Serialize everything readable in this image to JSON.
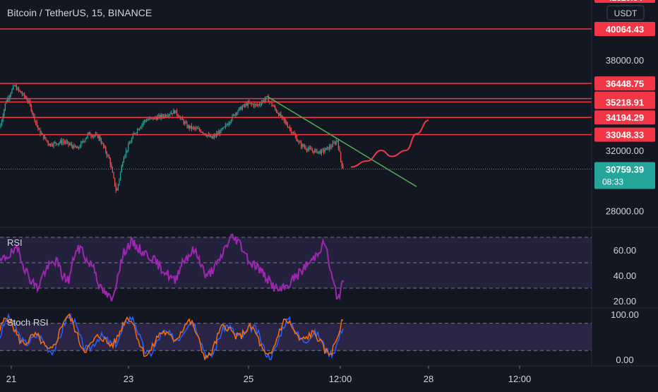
{
  "header": {
    "title": "Bitcoin / TetherUS, 15, BINANCE"
  },
  "price_axis": {
    "currency": "USDT",
    "tick_labels": [
      "38000.00",
      "32000.00",
      "28000.00"
    ],
    "top_partial_label": "42820.54"
  },
  "horizontal_levels": [
    {
      "label": "40064.43",
      "value": 40064.43
    },
    {
      "label": "36448.75",
      "value": 36448.75
    },
    {
      "label": "35439.51",
      "value": 35439.51
    },
    {
      "label": "35218.91",
      "value": 35218.91
    },
    {
      "label": "34194.29",
      "value": 34194.29
    },
    {
      "label": "33048.33",
      "value": 33048.33
    }
  ],
  "current_price": {
    "label": "30759.39",
    "countdown": "08:33",
    "value": 30759.39
  },
  "indicators": {
    "rsi": {
      "label": "RSI",
      "ticks": [
        "60.00",
        "40.00",
        "20.00"
      ]
    },
    "stoch_rsi": {
      "label": "Stoch RSI",
      "ticks": [
        "100.00",
        "0.00"
      ]
    }
  },
  "time_axis": {
    "labels": [
      "21",
      "23",
      "25",
      "12:00",
      "28",
      "12:00"
    ]
  },
  "colors": {
    "background": "#131722",
    "level_line": "#f23645",
    "trendline": "#4caf50",
    "projection": "#f23645",
    "current_price_tag": "#26a69a",
    "rsi": "#9c27b0",
    "rsi_band": "#7e57c2",
    "stoch_k": "#2962ff",
    "stoch_d": "#ff6d00",
    "candle_up": "#26a69a",
    "candle_down": "#ef5350"
  },
  "chart_data": {
    "type": "candlestick",
    "symbol": "Bitcoin / TetherUS",
    "interval": "15",
    "exchange": "BINANCE",
    "x_labels": [
      "21",
      "23",
      "25",
      "12:00",
      "28",
      "12:00"
    ],
    "price_path": [
      {
        "x": 0,
        "y": 33500
      },
      {
        "x": 8,
        "y": 35200
      },
      {
        "x": 20,
        "y": 36300
      },
      {
        "x": 40,
        "y": 35300
      },
      {
        "x": 55,
        "y": 33300
      },
      {
        "x": 70,
        "y": 32400
      },
      {
        "x": 90,
        "y": 32600
      },
      {
        "x": 110,
        "y": 32100
      },
      {
        "x": 125,
        "y": 33100
      },
      {
        "x": 140,
        "y": 32900
      },
      {
        "x": 155,
        "y": 31400
      },
      {
        "x": 165,
        "y": 29200
      },
      {
        "x": 175,
        "y": 31600
      },
      {
        "x": 190,
        "y": 33100
      },
      {
        "x": 205,
        "y": 34000
      },
      {
        "x": 225,
        "y": 34200
      },
      {
        "x": 248,
        "y": 34600
      },
      {
        "x": 265,
        "y": 33600
      },
      {
        "x": 285,
        "y": 33300
      },
      {
        "x": 300,
        "y": 32800
      },
      {
        "x": 318,
        "y": 33500
      },
      {
        "x": 335,
        "y": 34600
      },
      {
        "x": 350,
        "y": 35100
      },
      {
        "x": 365,
        "y": 35000
      },
      {
        "x": 378,
        "y": 35500
      },
      {
        "x": 395,
        "y": 34400
      },
      {
        "x": 410,
        "y": 33500
      },
      {
        "x": 425,
        "y": 32400
      },
      {
        "x": 440,
        "y": 32000
      },
      {
        "x": 455,
        "y": 31900
      },
      {
        "x": 470,
        "y": 32300
      },
      {
        "x": 478,
        "y": 32700
      },
      {
        "x": 483,
        "y": 31200
      },
      {
        "x": 487,
        "y": 30759.39
      }
    ],
    "trendline": [
      {
        "x": 378,
        "y": 35600
      },
      {
        "x": 590,
        "y": 29600
      }
    ],
    "projection_path": [
      {
        "x": 497,
        "y": 30900
      },
      {
        "x": 520,
        "y": 31300
      },
      {
        "x": 540,
        "y": 32000
      },
      {
        "x": 555,
        "y": 31600
      },
      {
        "x": 575,
        "y": 32000
      },
      {
        "x": 590,
        "y": 33100
      },
      {
        "x": 607,
        "y": 34000
      }
    ],
    "rsi_series": [
      50,
      55,
      58,
      60,
      45,
      36,
      30,
      42,
      48,
      52,
      40,
      36,
      58,
      62,
      50,
      48,
      30,
      25,
      20,
      45,
      60,
      66,
      62,
      58,
      55,
      50,
      45,
      40,
      35,
      50,
      55,
      60,
      52,
      38,
      45,
      50,
      62,
      70,
      68,
      60,
      50,
      48,
      42,
      36,
      30,
      28,
      32,
      38,
      42,
      48,
      52,
      60,
      66,
      40,
      22,
      35
    ],
    "rsi_levels": [
      70,
      50,
      30
    ],
    "stoch_levels": [
      80,
      20
    ]
  }
}
